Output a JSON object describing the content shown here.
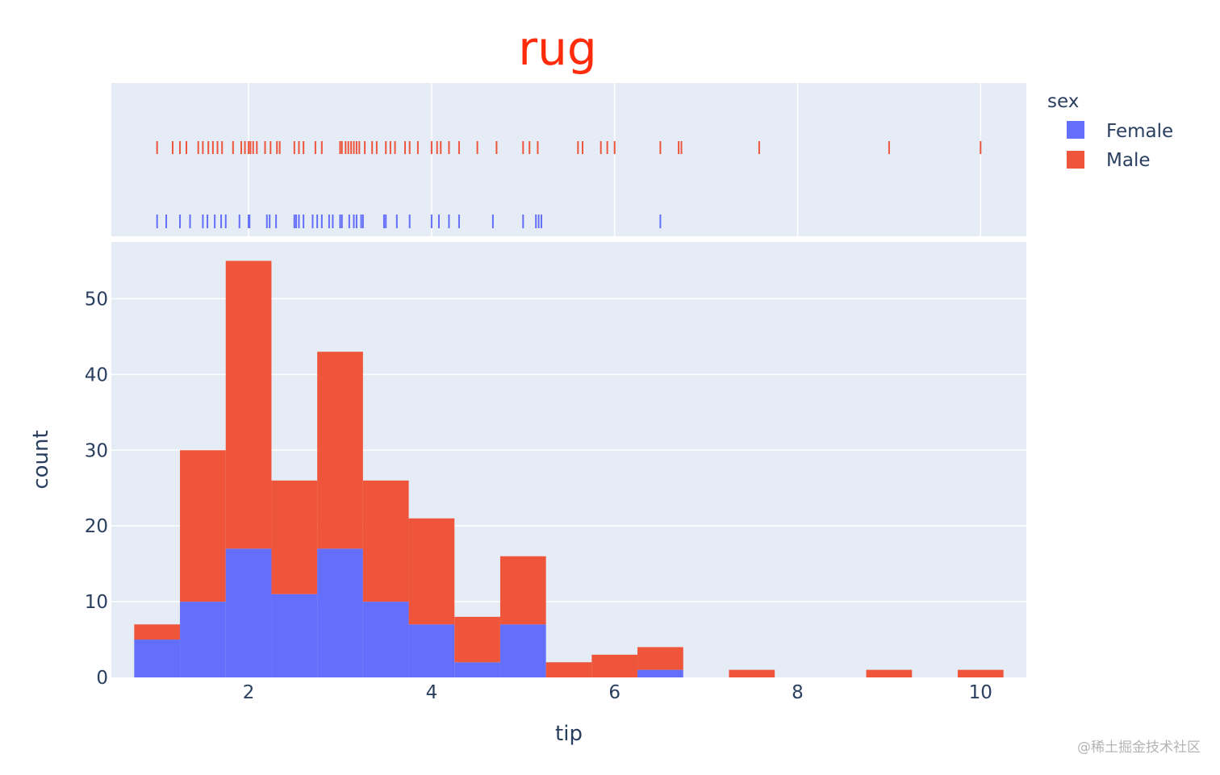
{
  "chart_data": {
    "type": "bar",
    "title": "rug",
    "xlabel": "tip",
    "ylabel": "count",
    "xlim": [
      0.5,
      10.5
    ],
    "ylim": [
      0,
      57.5
    ],
    "x_ticks": [
      2,
      4,
      6,
      8,
      10
    ],
    "y_ticks": [
      0,
      10,
      20,
      30,
      40,
      50
    ],
    "barmode": "stack",
    "bin_width": 0.5,
    "bin_starts": [
      0.75,
      1.25,
      1.75,
      2.25,
      2.75,
      3.25,
      3.75,
      4.25,
      4.75,
      5.25,
      5.75,
      6.25,
      6.75,
      7.25,
      7.75,
      8.25,
      8.75,
      9.25,
      9.75
    ],
    "legend_title": "sex",
    "legend_position": "top-right",
    "series": [
      {
        "name": "Female",
        "color": "#636efa",
        "values": [
          5,
          10,
          17,
          11,
          17,
          10,
          7,
          2,
          7,
          0,
          0,
          1,
          0,
          0,
          0,
          0,
          0,
          0,
          0
        ],
        "rug": [
          1.0,
          1.1,
          1.25,
          1.36,
          1.5,
          1.55,
          1.63,
          1.7,
          1.75,
          1.9,
          2.0,
          2.01,
          2.2,
          2.23,
          2.3,
          2.5,
          2.52,
          2.55,
          2.6,
          2.7,
          2.75,
          2.8,
          2.88,
          2.92,
          3.0,
          3.02,
          3.1,
          3.15,
          3.18,
          3.23,
          3.25,
          3.48,
          3.5,
          3.62,
          3.76,
          4.0,
          4.08,
          4.19,
          4.3,
          4.67,
          5.0,
          5.14,
          5.17,
          5.2,
          6.5
        ]
      },
      {
        "name": "Male",
        "color": "#ef553b",
        "values": [
          2,
          20,
          38,
          15,
          26,
          16,
          14,
          6,
          9,
          2,
          3,
          3,
          0,
          1,
          0,
          0,
          1,
          0,
          1
        ],
        "rug": [
          1.0,
          1.17,
          1.25,
          1.32,
          1.45,
          1.5,
          1.56,
          1.61,
          1.66,
          1.71,
          1.83,
          1.92,
          1.96,
          2.0,
          2.02,
          2.05,
          2.09,
          2.18,
          2.24,
          2.31,
          2.34,
          2.5,
          2.55,
          2.6,
          2.73,
          2.8,
          3.0,
          3.02,
          3.06,
          3.09,
          3.12,
          3.15,
          3.18,
          3.21,
          3.27,
          3.35,
          3.4,
          3.5,
          3.55,
          3.6,
          3.71,
          3.76,
          3.85,
          4.0,
          4.06,
          4.1,
          4.19,
          4.3,
          4.5,
          4.71,
          5.0,
          5.07,
          5.16,
          5.6,
          5.65,
          5.85,
          5.92,
          6.0,
          6.5,
          6.7,
          6.73,
          7.58,
          9.0,
          10.0
        ]
      }
    ]
  },
  "watermark": "@稀土掘金技术社区"
}
